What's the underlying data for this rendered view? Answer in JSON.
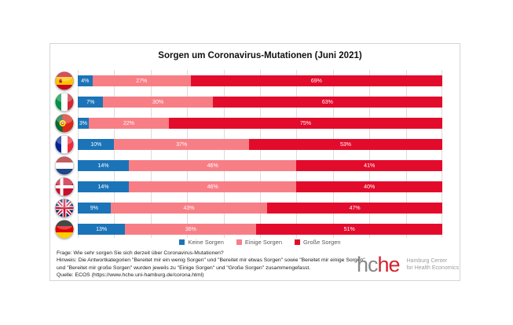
{
  "chart_data": {
    "type": "bar",
    "orientation": "horizontal",
    "stacked": true,
    "title": "Sorgen um Coronavirus-Mutationen (Juni 2021)",
    "categories": [
      "Spanien",
      "Italien",
      "Portugal",
      "Frankreich",
      "Niederlande",
      "Dänemark",
      "Großbritannien",
      "Deutschland"
    ],
    "category_flags": [
      "es",
      "it",
      "pt",
      "fr",
      "nl",
      "dk",
      "gb",
      "de"
    ],
    "series": [
      {
        "name": "Keine Sorgen",
        "color": "#1B74B8",
        "values": [
          4,
          7,
          3,
          10,
          14,
          14,
          9,
          13
        ]
      },
      {
        "name": "Einige Sorgen",
        "color": "#F87E86",
        "values": [
          27,
          30,
          22,
          37,
          46,
          46,
          43,
          36
        ]
      },
      {
        "name": "Große Sorgen",
        "color": "#E30B2C",
        "values": [
          69,
          63,
          75,
          53,
          41,
          40,
          47,
          51
        ]
      }
    ],
    "value_suffix": "%",
    "xlim": [
      0,
      100
    ],
    "gridline_step_pct": 10,
    "grid_color": "#dcdcdc",
    "legend_position": "bottom",
    "value_label_color": "#ffffff"
  },
  "footer": {
    "frage": "Frage: Wie sehr sorgen Sie sich derzeit über  Coronavirus-Mutationen?",
    "hinweis": "Hinweis: Die Antwortkategorien \"Bereitet mir ein wenig Sorgen\" und \"Bereitet mir etwas Sorgen\" sowie \"Bereitet mir einige Sorgen\" und \"Bereitet mir große Sorgen\" wurden jeweils zu \"Einige Sorgen\" und \"Große Sorgen\" zusammengefasst.",
    "quelle": "Quelle: ECOS (https://www.hche.uni-hamburg.de/corona.html)"
  },
  "logo": {
    "text_gray": "hc",
    "text_red": "he",
    "tagline_line1": "Hamburg Center",
    "tagline_line2": "for Health Economics",
    "gray_color": "#898989",
    "red_color": "#d2232e",
    "tagline_color": "#9c9c9c"
  }
}
